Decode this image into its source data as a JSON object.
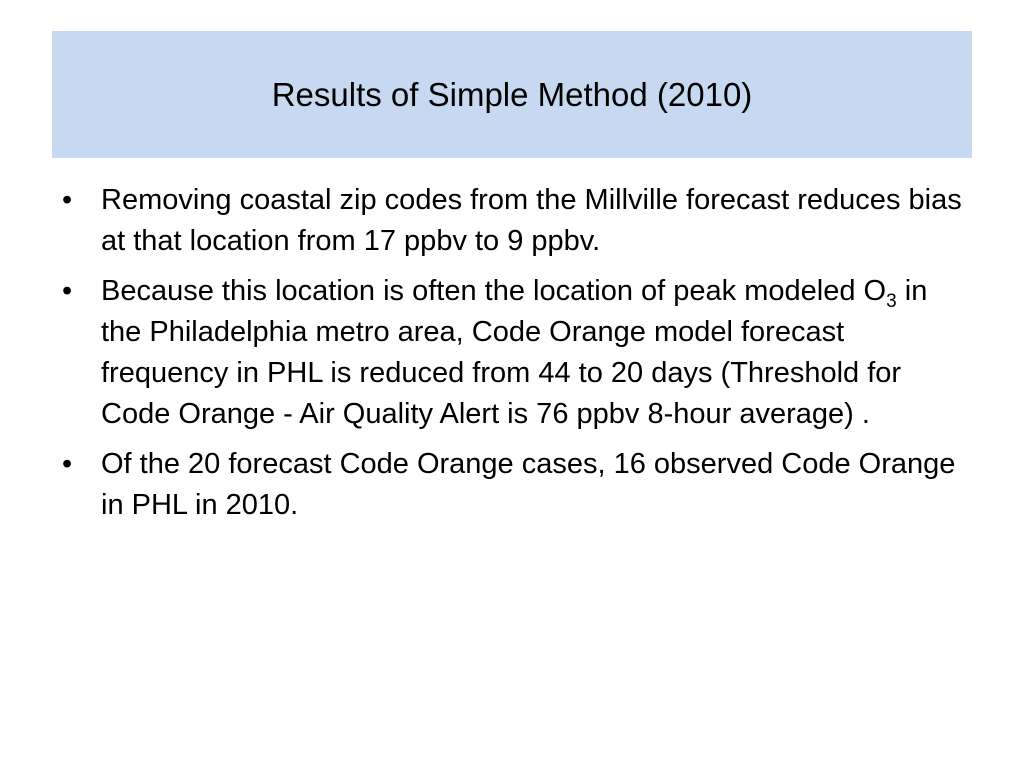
{
  "header": {
    "title": "Results of Simple Method (2010)"
  },
  "bullets": [
    "Removing coastal zip codes from the Millville forecast reduces bias at that location from 17 ppbv to 9 ppbv.",
    [
      "Because this location is often the location of peak modeled O",
      "3",
      " in the Philadelphia metro area, Code Orange model forecast frequency in PHL is reduced from 44 to 20 days (Threshold for Code Orange - Air Quality Alert is 76 ppbv 8-hour average) ."
    ],
    "Of the 20 forecast Code Orange cases, 16 observed Code Orange in PHL in 2010."
  ]
}
